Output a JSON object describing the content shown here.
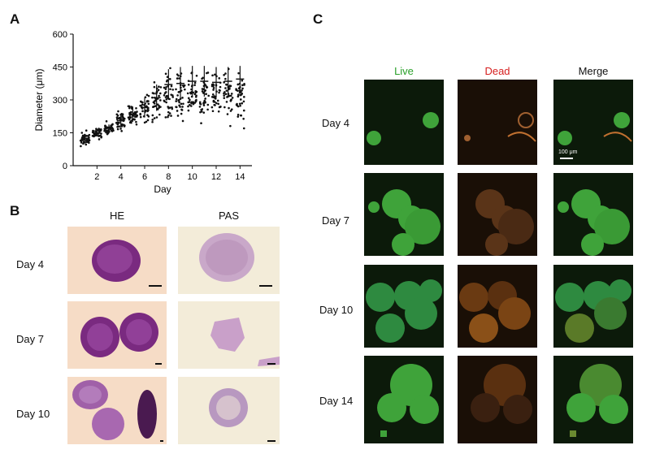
{
  "panels": {
    "a": "A",
    "b": "B",
    "c": "C"
  },
  "chart_data": {
    "type": "scatter",
    "xlabel": "Day",
    "ylabel": "Diameter (μm)",
    "x_ticks": [
      2,
      4,
      6,
      8,
      10,
      12,
      14
    ],
    "y_ticks": [
      0,
      150,
      300,
      450,
      600
    ],
    "xlim": [
      0,
      15
    ],
    "ylim": [
      0,
      600
    ],
    "series": [
      {
        "day": 1,
        "mean": 125,
        "sd": 18,
        "min": 80,
        "max": 175
      },
      {
        "day": 2,
        "mean": 148,
        "sd": 15,
        "min": 110,
        "max": 185
      },
      {
        "day": 3,
        "mean": 170,
        "sd": 18,
        "min": 135,
        "max": 210
      },
      {
        "day": 4,
        "mean": 205,
        "sd": 30,
        "min": 145,
        "max": 265
      },
      {
        "day": 5,
        "mean": 235,
        "sd": 35,
        "min": 160,
        "max": 300
      },
      {
        "day": 6,
        "mean": 265,
        "sd": 45,
        "min": 170,
        "max": 350
      },
      {
        "day": 7,
        "mean": 310,
        "sd": 60,
        "min": 180,
        "max": 420
      },
      {
        "day": 8,
        "mean": 370,
        "sd": 70,
        "min": 180,
        "max": 480
      },
      {
        "day": 9,
        "mean": 375,
        "sd": 75,
        "min": 160,
        "max": 480
      },
      {
        "day": 10,
        "mean": 385,
        "sd": 70,
        "min": 165,
        "max": 480
      },
      {
        "day": 11,
        "mean": 385,
        "sd": 70,
        "min": 175,
        "max": 480
      },
      {
        "day": 12,
        "mean": 380,
        "sd": 70,
        "min": 165,
        "max": 480
      },
      {
        "day": 13,
        "mean": 385,
        "sd": 65,
        "min": 160,
        "max": 480
      },
      {
        "day": 14,
        "mean": 395,
        "sd": 60,
        "min": 150,
        "max": 480
      }
    ]
  },
  "panel_b": {
    "headers": [
      "HE",
      "PAS"
    ],
    "rows": [
      "Day 4",
      "Day 7",
      "Day 10"
    ]
  },
  "panel_c": {
    "headers": [
      "Live",
      "Dead",
      "Merge"
    ],
    "header_colors": [
      "#2aa02a",
      "#d62020",
      "#111111"
    ],
    "rows": [
      "Day 4",
      "Day 7",
      "Day 10",
      "Day 14"
    ],
    "scale_label": "100 μm"
  }
}
